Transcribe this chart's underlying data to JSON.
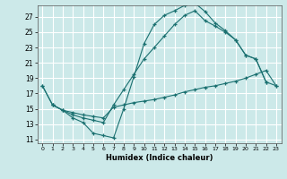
{
  "background_color": "#cce9e9",
  "grid_color": "#ffffff",
  "line_color": "#1a7070",
  "xlabel": "Humidex (Indice chaleur)",
  "xlim": [
    -0.5,
    23.5
  ],
  "ylim": [
    10.5,
    28.5
  ],
  "xticks": [
    0,
    1,
    2,
    3,
    4,
    5,
    6,
    7,
    8,
    9,
    10,
    11,
    12,
    13,
    14,
    15,
    16,
    17,
    18,
    19,
    20,
    21,
    22,
    23
  ],
  "yticks": [
    11,
    13,
    15,
    17,
    19,
    21,
    23,
    25,
    27
  ],
  "curve1_x": [
    0,
    1,
    2,
    3,
    4,
    5,
    6,
    7,
    8,
    9,
    10,
    11,
    12,
    13,
    14,
    15,
    16,
    17,
    18,
    19,
    20,
    21,
    22
  ],
  "curve1_y": [
    18.0,
    15.5,
    14.8,
    13.8,
    13.2,
    11.8,
    11.5,
    11.2,
    15.0,
    19.2,
    23.5,
    26.0,
    27.2,
    27.8,
    28.5,
    28.8,
    27.7,
    26.2,
    25.2,
    24.0,
    22.0,
    21.5,
    18.5
  ],
  "curve2_x": [
    1,
    2,
    3,
    4,
    5,
    6,
    7,
    8,
    9,
    10,
    11,
    12,
    13,
    14,
    15,
    16,
    17,
    18,
    19,
    20,
    21,
    22,
    23
  ],
  "curve2_y": [
    15.5,
    14.8,
    14.5,
    14.2,
    14.0,
    13.8,
    15.2,
    15.5,
    15.8,
    16.0,
    16.2,
    16.5,
    16.8,
    17.2,
    17.5,
    17.8,
    18.0,
    18.3,
    18.6,
    19.0,
    19.5,
    20.0,
    18.0
  ],
  "curve3_x": [
    0,
    1,
    2,
    3,
    4,
    5,
    6,
    7,
    8,
    9,
    10,
    11,
    12,
    13,
    14,
    15,
    16,
    17,
    18,
    19,
    20,
    21,
    22,
    23
  ],
  "curve3_y": [
    18.0,
    15.5,
    14.8,
    14.2,
    13.8,
    13.5,
    13.2,
    15.5,
    17.5,
    19.5,
    21.5,
    23.0,
    24.5,
    26.0,
    27.2,
    27.8,
    26.5,
    25.8,
    25.0,
    24.0,
    22.0,
    21.5,
    18.5,
    18.0
  ]
}
